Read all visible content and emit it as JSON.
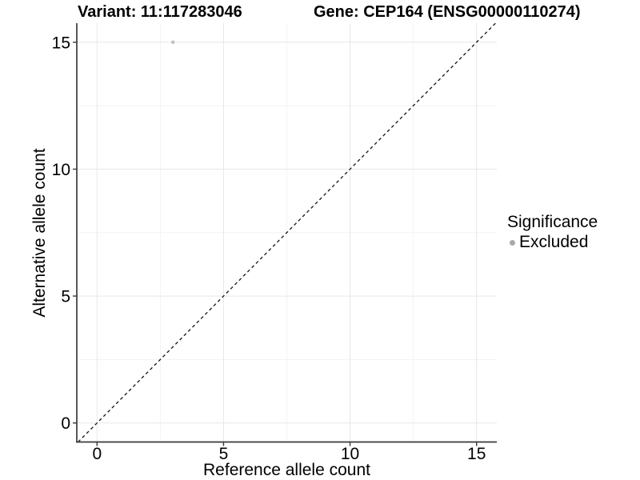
{
  "figure": {
    "title_left": "Variant: 11:117283046",
    "title_right": "Gene: CEP164 (ENSG00000110274)"
  },
  "chart_data": {
    "type": "scatter",
    "title_left": "Variant: 11:117283046",
    "title_right": "Gene: CEP164 (ENSG00000110274)",
    "xlabel": "Reference allele count",
    "ylabel": "Alternative allele count",
    "xlim": [
      -0.8,
      15.8
    ],
    "ylim": [
      -0.75,
      15.75
    ],
    "xticks": [
      0,
      5,
      10,
      15
    ],
    "yticks": [
      0,
      5,
      10,
      15
    ],
    "minor_xticks": [
      2.5,
      7.5,
      12.5
    ],
    "minor_yticks": [
      2.5,
      7.5,
      12.5
    ],
    "grid": "major and minor gridlines, white background",
    "identity_line": {
      "equation": "y = x",
      "style": "dashed",
      "color": "#141414"
    },
    "points": [
      {
        "x": 3,
        "y": 15,
        "significance": "Excluded"
      }
    ],
    "point_color": "#c3c3c3",
    "point_radius_px": 2.3,
    "legend": {
      "title": "Significance",
      "position": "right",
      "items": [
        {
          "label": "Excluded",
          "color": "#a9a9a9",
          "marker": "circle"
        }
      ]
    },
    "colors": {
      "background": "#ffffff",
      "grid_major": "#e7e7e7",
      "grid_minor": "#f3f3f3",
      "axis": "#3a3a3a",
      "text": "#000000"
    }
  }
}
